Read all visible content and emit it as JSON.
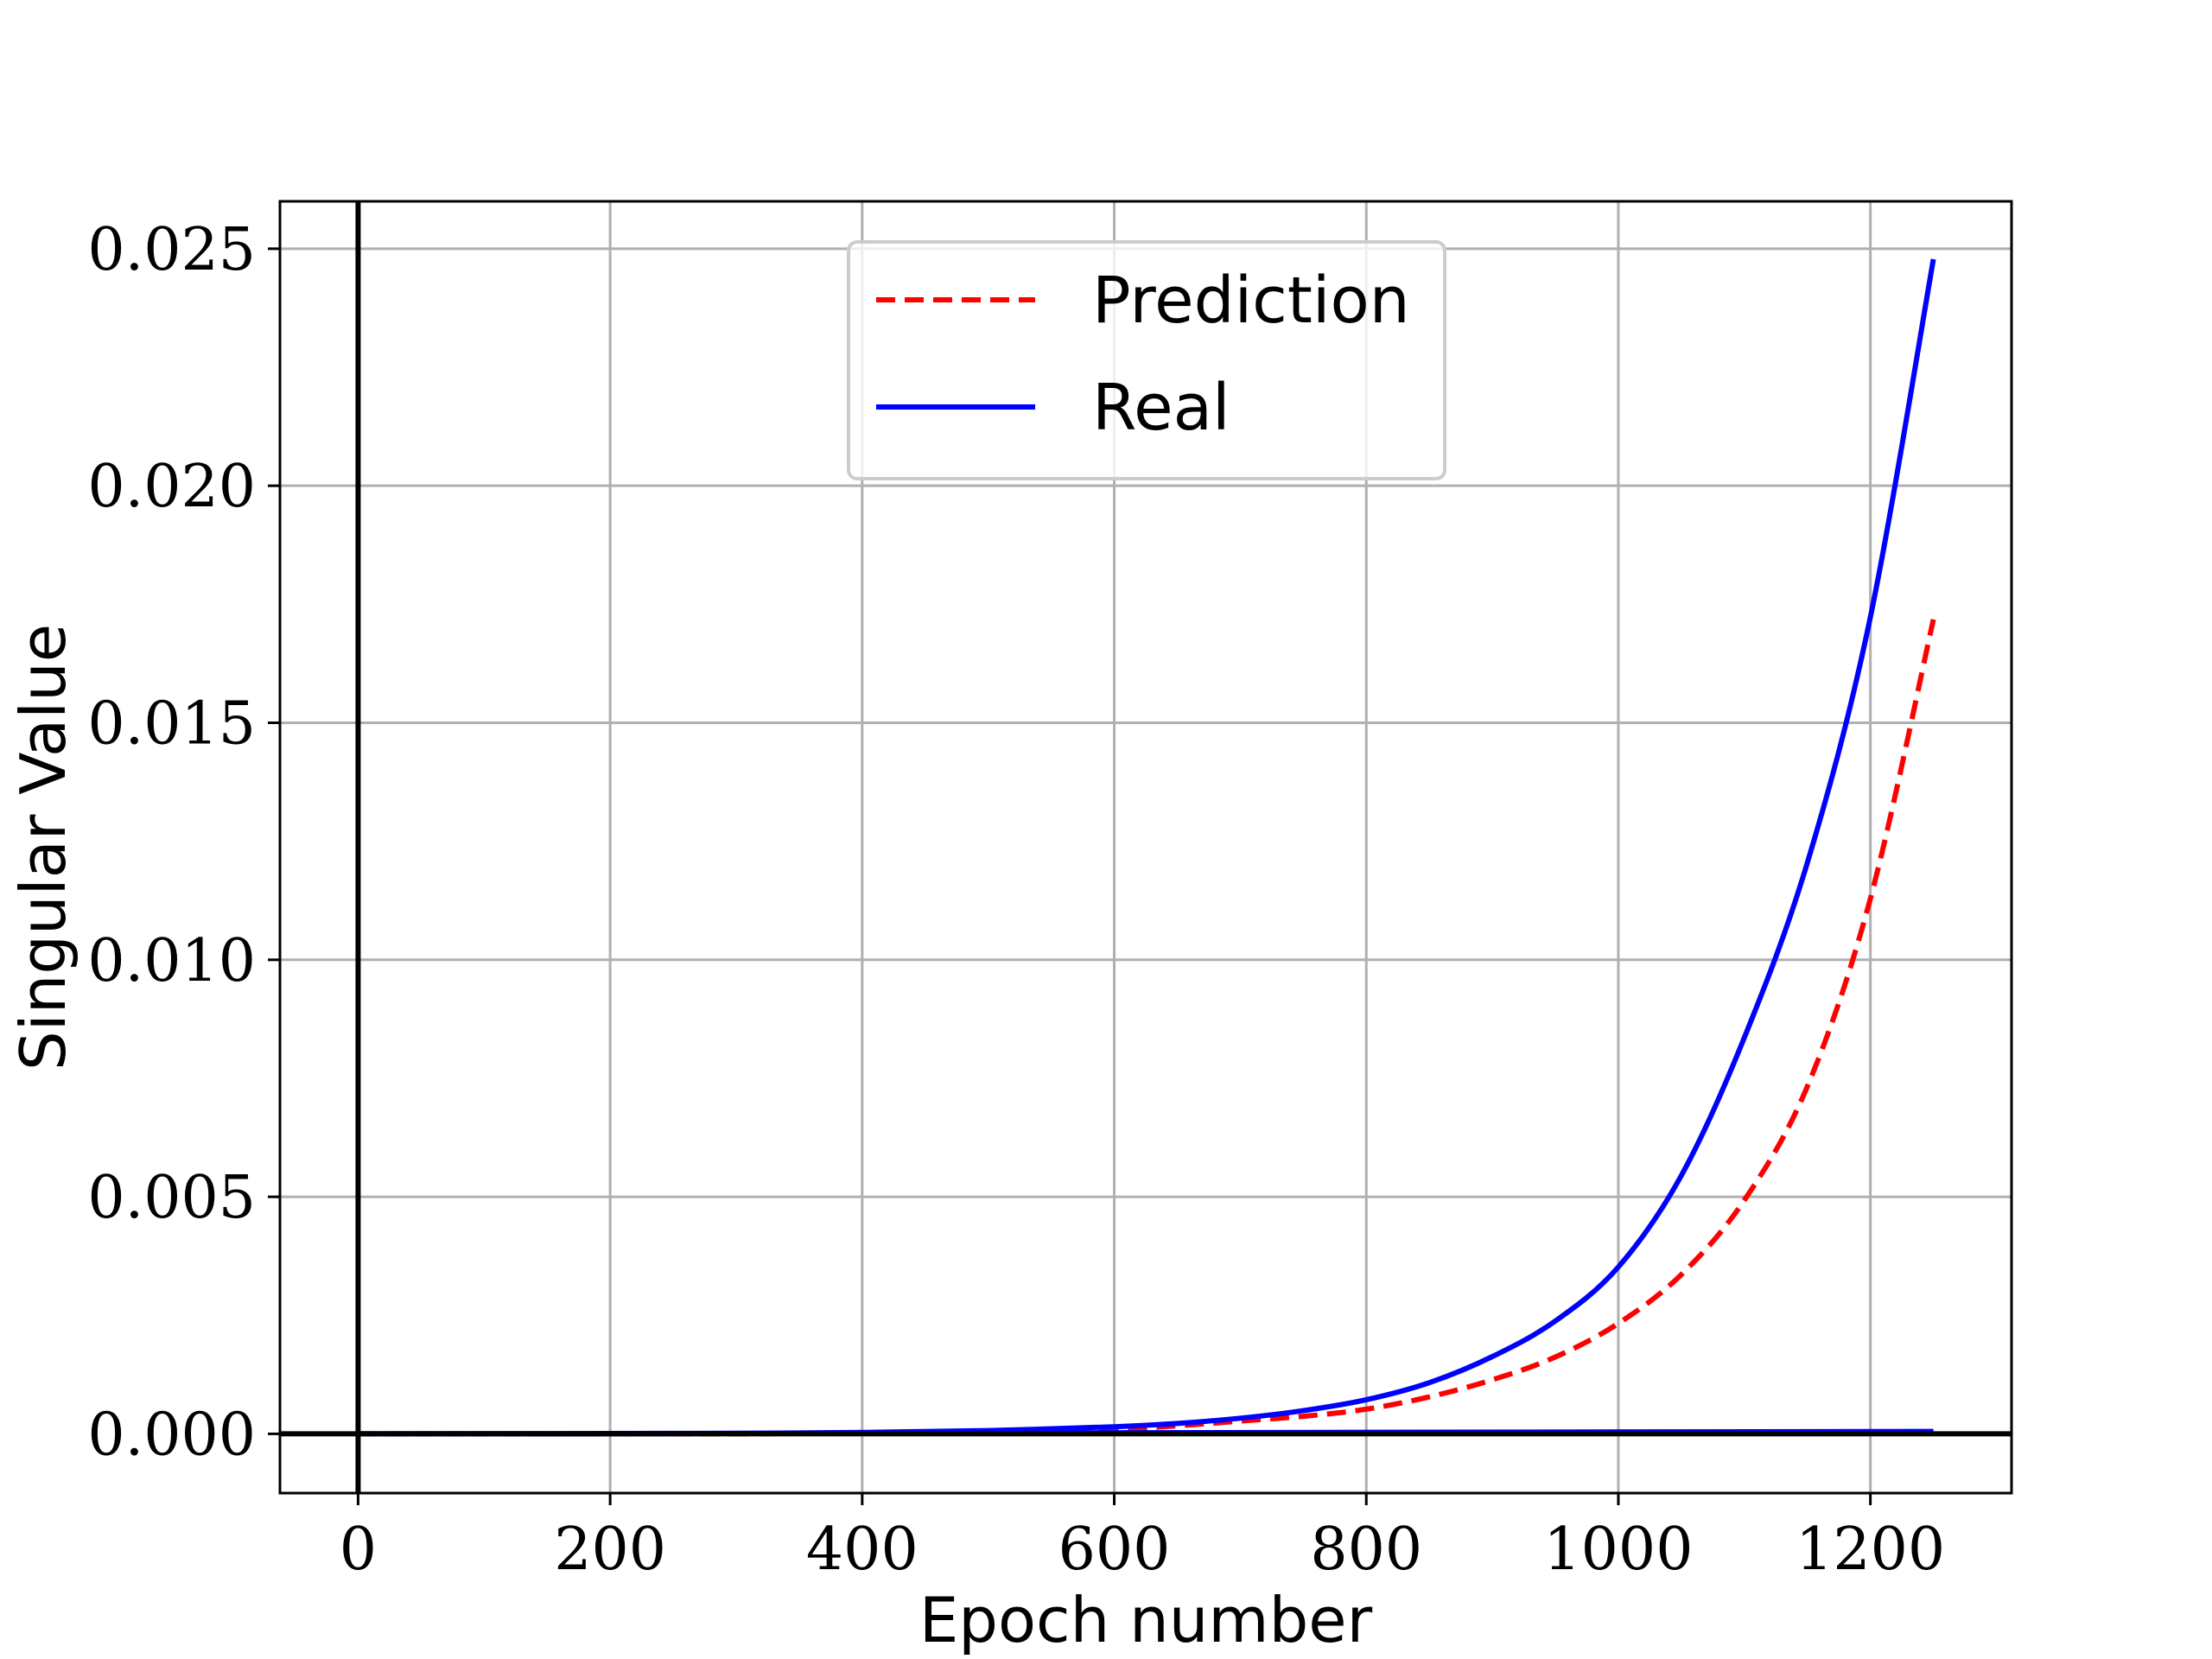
{
  "chart_data": {
    "type": "line",
    "xlabel": "Epoch number",
    "ylabel": "Singular Value",
    "xlim": [
      -62,
      1312
    ],
    "ylim": [
      -0.00125,
      0.026
    ],
    "xticks": [
      0,
      200,
      400,
      600,
      800,
      1000,
      1200
    ],
    "xtick_labels": [
      "0",
      "200",
      "400",
      "600",
      "800",
      "1000",
      "1200"
    ],
    "yticks": [
      0.0,
      0.005,
      0.01,
      0.015,
      0.02,
      0.025
    ],
    "ytick_labels": [
      "0.000",
      "0.005",
      "0.010",
      "0.015",
      "0.020",
      "0.025"
    ],
    "grid": true,
    "legend": "upper center",
    "series": [
      {
        "name": "Prediction",
        "color": "#ff0000",
        "style": "dashed",
        "x": [
          0,
          100,
          200,
          300,
          400,
          500,
          600,
          650,
          700,
          750,
          800,
          850,
          900,
          950,
          1000,
          1050,
          1100,
          1150,
          1200,
          1250
        ],
        "y": [
          0.0,
          0.0,
          0.0,
          0.0,
          2e-05,
          5e-05,
          0.0001,
          0.00017,
          0.00027,
          0.00037,
          0.00052,
          0.00078,
          0.00114,
          0.00162,
          0.00233,
          0.00336,
          0.00493,
          0.00733,
          0.01129,
          0.01718
        ]
      },
      {
        "name": "Real",
        "color": "#0000ff",
        "style": "solid",
        "x": [
          0,
          100,
          200,
          300,
          400,
          500,
          600,
          650,
          700,
          750,
          800,
          850,
          900,
          950,
          1000,
          1050,
          1100,
          1150,
          1200,
          1250
        ],
        "y": [
          0.0,
          0.0,
          0.0,
          1e-05,
          3e-05,
          7e-05,
          0.00015,
          0.00022,
          0.00033,
          0.00049,
          0.00072,
          0.00108,
          0.00163,
          0.00238,
          0.00352,
          0.00545,
          0.00836,
          0.01205,
          0.01723,
          0.02478
        ]
      },
      {
        "name": "",
        "color": "#0000ff",
        "style": "solid",
        "x": [
          0,
          1250
        ],
        "y": [
          0.0,
          5e-05
        ]
      }
    ],
    "reference_lines": {
      "vertical_x": 0,
      "horizontal_y": 0,
      "color": "#000000"
    }
  }
}
